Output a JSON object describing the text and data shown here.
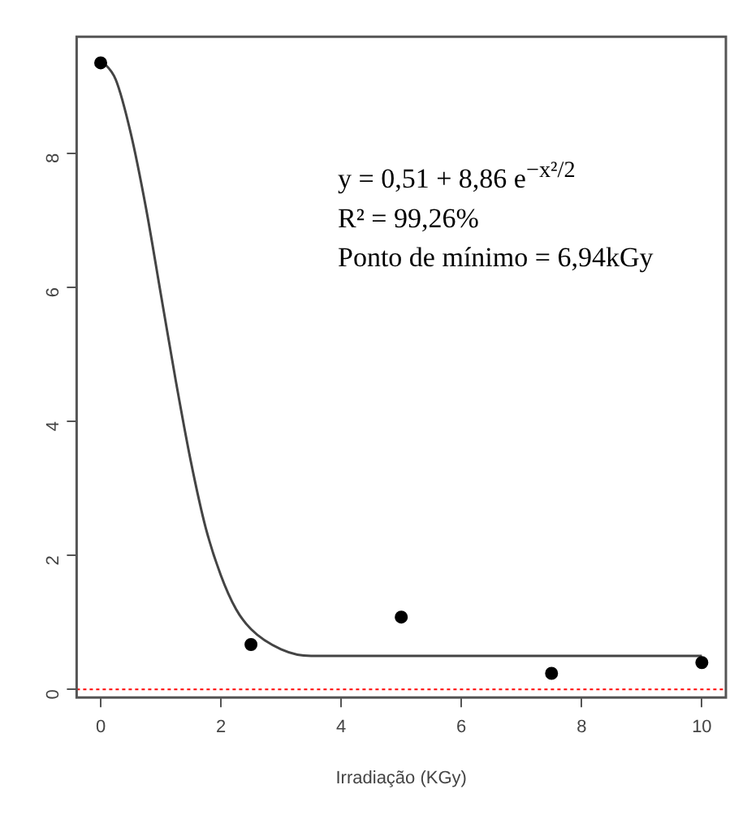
{
  "chart_data": {
    "type": "scatter",
    "xlabel": "Irradiação (KGy)",
    "xlim": [
      -0.4,
      10.4
    ],
    "xticks": [
      0,
      2,
      4,
      6,
      8,
      10
    ],
    "ylim": [
      -0.12,
      9.74
    ],
    "yticks": [
      0,
      2,
      4,
      6,
      8
    ],
    "grid": false,
    "legend": false,
    "marker": "circle",
    "series": [
      {
        "color": "#000000",
        "x": [
          0,
          2.5,
          5,
          7.5,
          10
        ],
        "values": [
          9.35,
          0.67,
          1.08,
          0.24,
          0.4
        ]
      },
      {
        "type": "line",
        "color": "#444444",
        "line_style": "solid",
        "marker": "none",
        "x": [
          0,
          0.25,
          0.5,
          0.75,
          1,
          1.25,
          1.5,
          1.75,
          2,
          2.25,
          2.5,
          3,
          3.5,
          4,
          6,
          8,
          10
        ],
        "values": [
          9.4,
          9.1,
          8.3,
          7.2,
          5.9,
          4.6,
          3.4,
          2.4,
          1.7,
          1.2,
          0.9,
          0.6,
          0.5,
          0.5,
          0.5,
          0.5,
          0.5
        ]
      }
    ],
    "ref_lines": [
      {
        "axis": "y",
        "value": 0,
        "color": "#ff0000",
        "line_style": "dotted"
      }
    ],
    "annotations": [
      "y = 0,51 + 8,86 e$^{−x²/2}$",
      "R² = 99,26%",
      "Ponto de mínimo = 6,94kGy"
    ]
  }
}
